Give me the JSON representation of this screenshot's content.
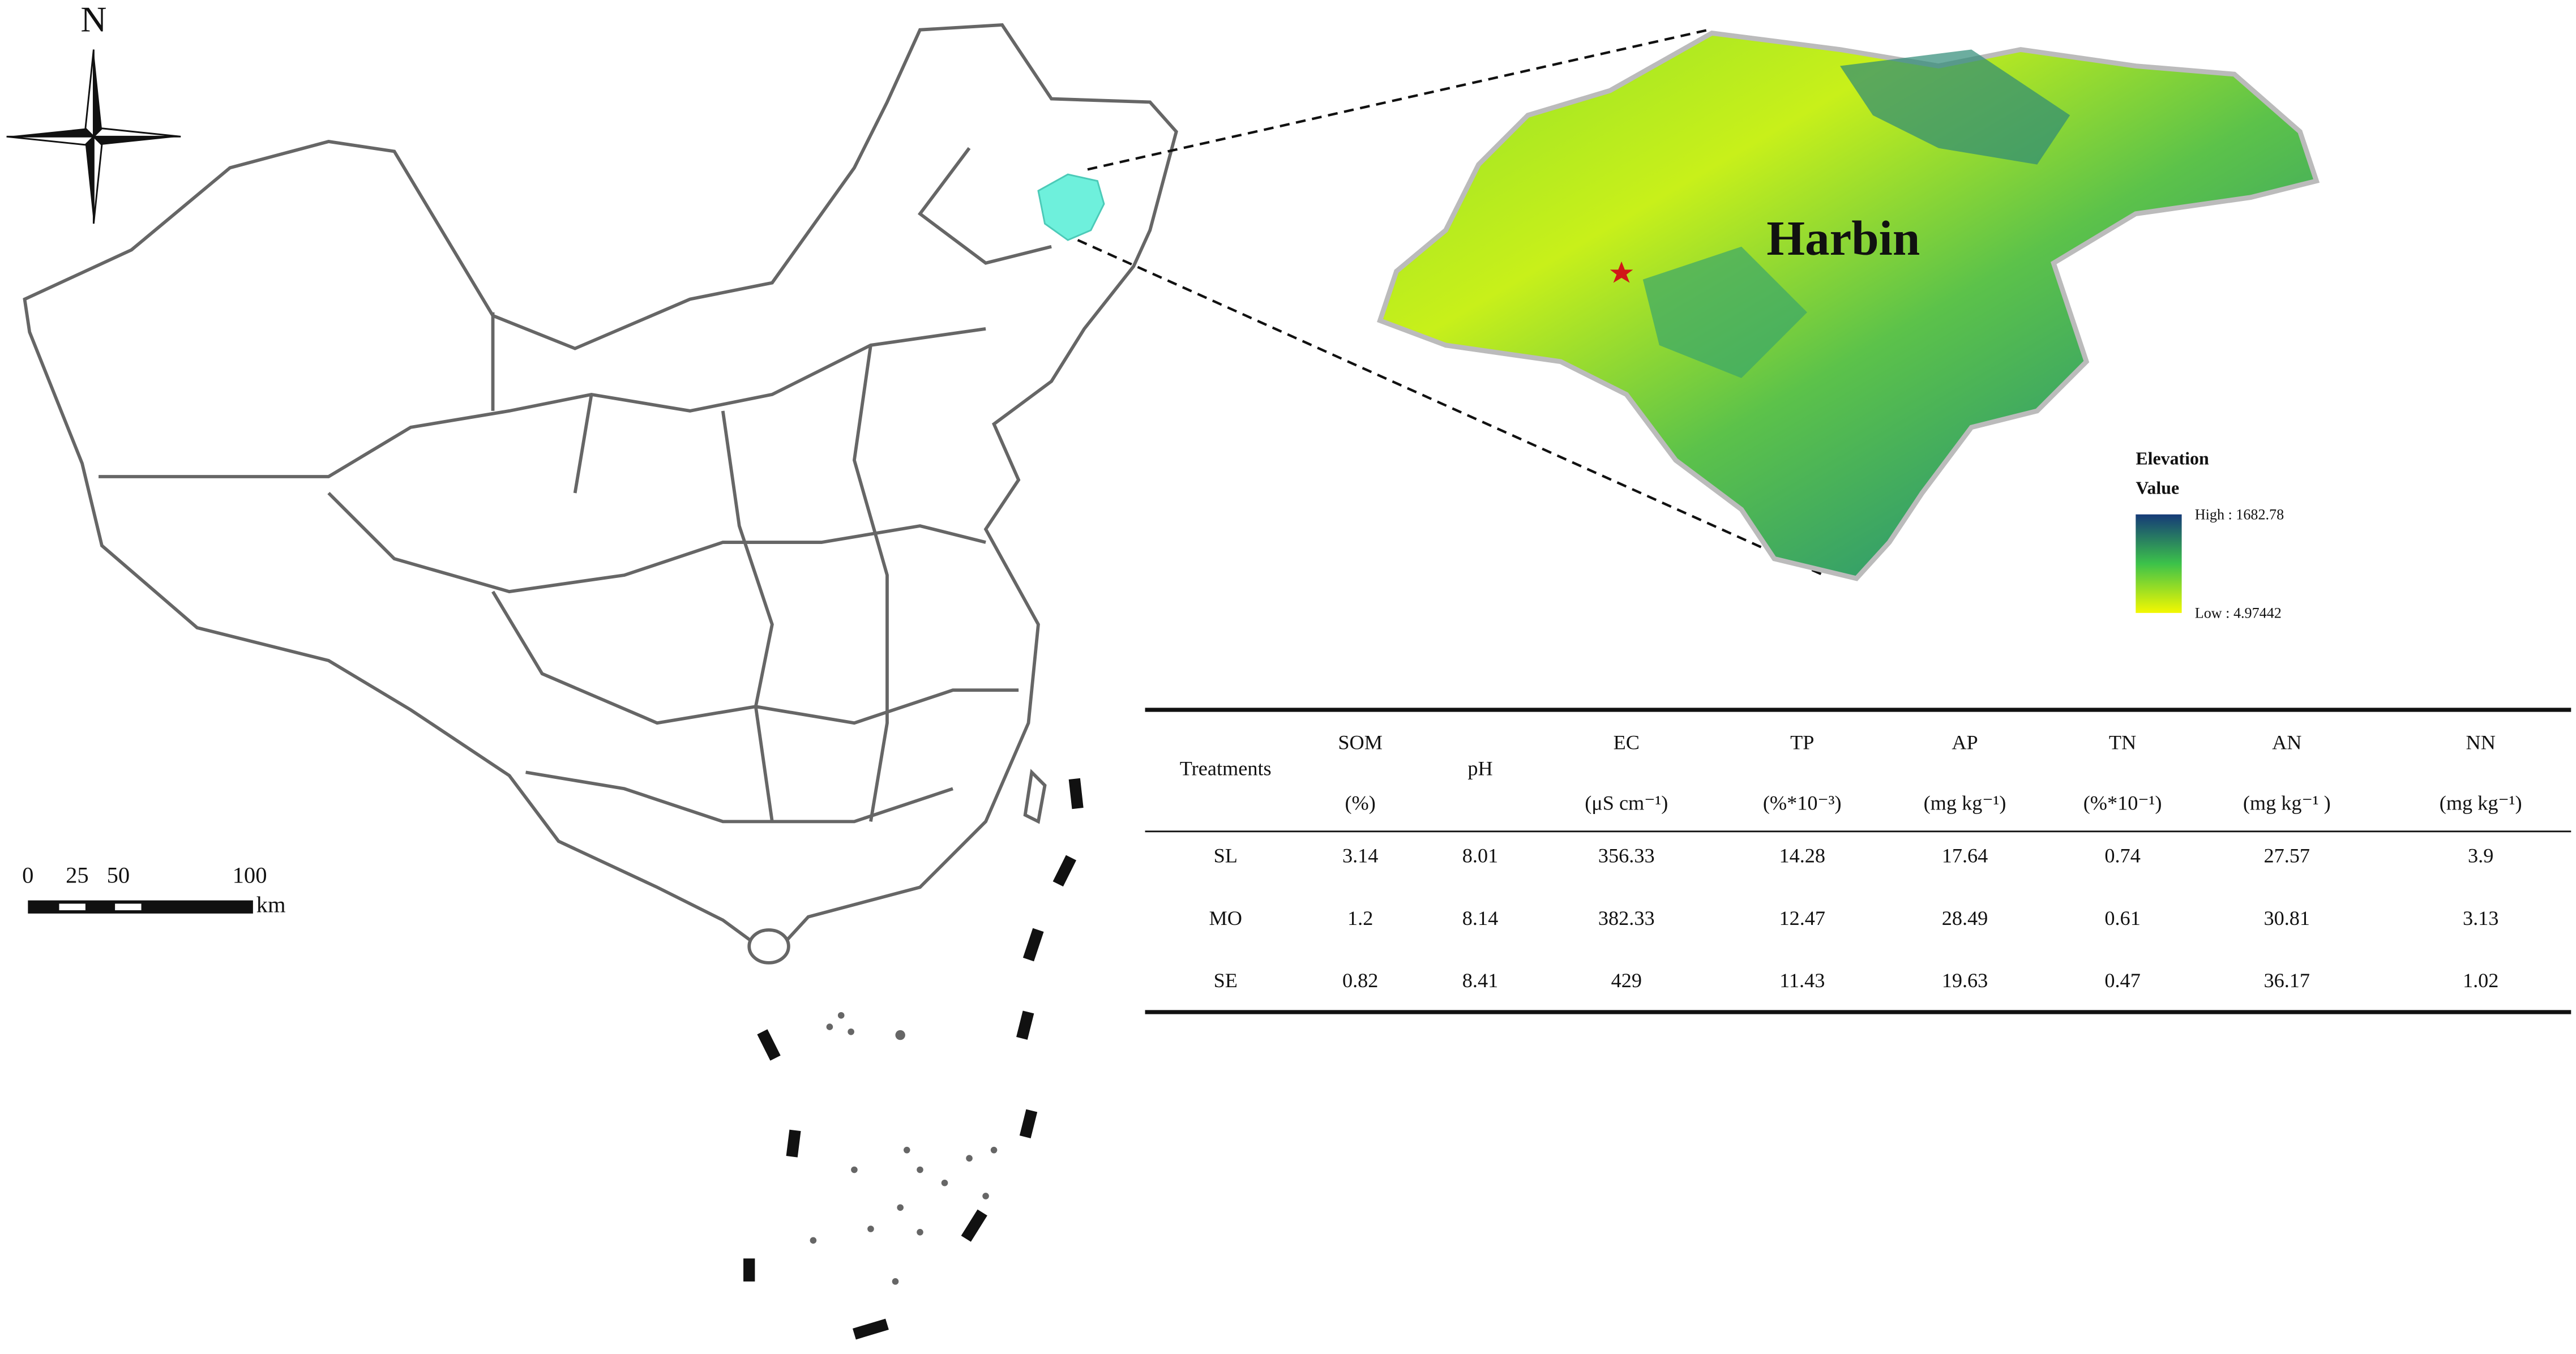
{
  "compass": {
    "label": "N"
  },
  "scale_bar": {
    "labels": [
      "0",
      "25",
      "50",
      "100"
    ],
    "unit": "km"
  },
  "inset": {
    "title": "Harbin",
    "legend": {
      "title": "Elevation",
      "subtitle": "Value",
      "high": "High : 1682.78",
      "low": "Low : 4.97442"
    }
  },
  "table": {
    "header": [
      {
        "name": "Treatments"
      },
      {
        "name": "SOM",
        "unit": "(%)"
      },
      {
        "name": "pH"
      },
      {
        "name": "EC",
        "unit": "(μS cm⁻¹)"
      },
      {
        "name": "TP",
        "unit": "(%*10⁻³)"
      },
      {
        "name": "AP",
        "unit": "(mg kg⁻¹)"
      },
      {
        "name": "TN",
        "unit": "(%*10⁻¹)"
      },
      {
        "name": "AN",
        "unit": "(mg kg⁻¹ )"
      },
      {
        "name": "NN",
        "unit": "(mg kg⁻¹)"
      }
    ],
    "rows": [
      [
        "SL",
        3.14,
        8.01,
        356.33,
        14.28,
        17.64,
        0.74,
        27.57,
        3.9
      ],
      [
        "MO",
        1.2,
        8.14,
        382.33,
        12.47,
        28.49,
        0.61,
        30.81,
        3.13
      ],
      [
        "SE",
        0.82,
        8.41,
        429,
        11.43,
        19.63,
        0.47,
        36.17,
        1.02
      ]
    ]
  }
}
